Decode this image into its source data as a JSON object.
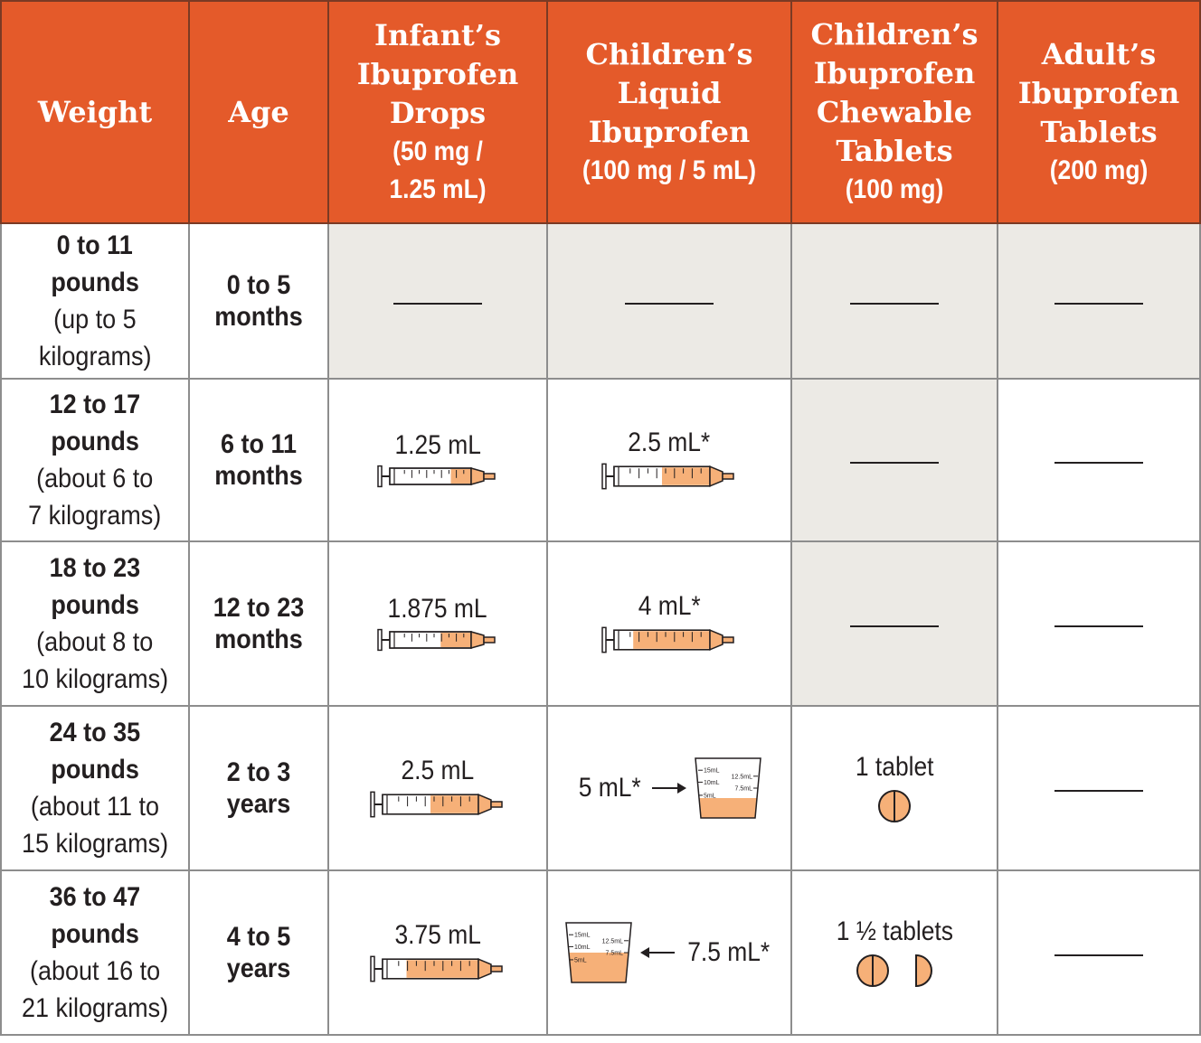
{
  "headers": {
    "weight": "Weight",
    "age": "Age",
    "infant_drops": {
      "l1": "Infant’s",
      "l2": "Ibuprofen",
      "l3": "Drops",
      "sub1": "(50 mg /",
      "sub2": "1.25 mL)"
    },
    "children_liquid": {
      "l1": "Children’s",
      "l2": "Liquid",
      "l3": "Ibuprofen",
      "sub1": "(100 mg / 5 mL)"
    },
    "children_chewable": {
      "l1": "Children’s",
      "l2": "Ibuprofen",
      "l3": "Chewable",
      "l4": "Tablets",
      "sub1": "(100 mg)"
    },
    "adult_tablets": {
      "l1": "Adult’s",
      "l2": "Ibuprofen",
      "l3": "Tablets",
      "sub1": "(200 mg)"
    }
  },
  "rows": [
    {
      "weight": {
        "l1": "0 to 11",
        "l2": "pounds",
        "l3": "(up to 5",
        "l4": "kilograms)"
      },
      "age": {
        "l1": "0 to 5",
        "l2": "months"
      },
      "infant_drops": "",
      "children_liquid": "",
      "chewable": "",
      "adult": ""
    },
    {
      "weight": {
        "l1": "12 to 17",
        "l2": "pounds",
        "l3": "(about 6 to",
        "l4": "7 kilograms)"
      },
      "age": {
        "l1": "6 to 11",
        "l2": "months"
      },
      "infant_drops": "1.25 mL",
      "infant_fill": 0.25,
      "children_liquid": "2.5 mL*",
      "liquid_fill": 0.5,
      "chewable": "",
      "adult": ""
    },
    {
      "weight": {
        "l1": "18 to 23",
        "l2": "pounds",
        "l3": "(about 8 to",
        "l4": "10 kilograms)"
      },
      "age": {
        "l1": "12 to 23",
        "l2": "months"
      },
      "infant_drops": "1.875 mL",
      "infant_fill": 0.375,
      "children_liquid": "4 mL*",
      "liquid_fill": 0.8,
      "chewable": "",
      "adult": ""
    },
    {
      "weight": {
        "l1": "24 to 35",
        "l2": "pounds",
        "l3": "(about 11 to",
        "l4": "15 kilograms)"
      },
      "age": {
        "l1": "2 to 3",
        "l2": "years"
      },
      "infant_drops": "2.5 mL",
      "infant_fill": 0.5,
      "children_liquid": "5 mL*",
      "cup_fill": 0.3333,
      "chewable": "1 tablet",
      "adult": ""
    },
    {
      "weight": {
        "l1": "36 to 47",
        "l2": "pounds",
        "l3": "(about 16 to",
        "l4": "21 kilograms)"
      },
      "age": {
        "l1": "4 to 5",
        "l2": "years"
      },
      "infant_drops": "3.75 mL",
      "infant_fill": 0.75,
      "children_liquid": "7.5 mL*",
      "cup_fill": 0.5,
      "chewable": "1 ½ tablets",
      "adult": ""
    }
  ],
  "cup_marks": {
    "m15": "15mL",
    "m125": "12.5mL",
    "m10": "10mL",
    "m75": "7.5mL",
    "m5": "5mL"
  },
  "syringe_ticks": {
    "t1": "1",
    "t2": "2",
    "t3": "3",
    "t4": "4",
    "t5": "5",
    "t1_25": "1.25",
    "t1_875": "1.875",
    "t2_5": "2.5"
  },
  "colors": {
    "header": "#e45a2a",
    "medicine": "#f6b078",
    "empty_cell": "#eceae5",
    "grid": "#8d8d8d"
  }
}
